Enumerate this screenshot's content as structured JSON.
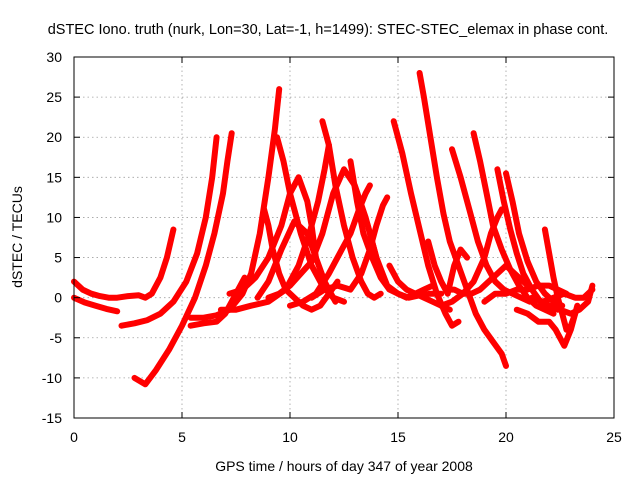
{
  "chart_data": {
    "type": "line",
    "title": "dSTEC Iono. truth (nurk, Lon=30, Lat=-1, h=1499): STEC-STEC_elemax in phase cont.",
    "xlabel": "GPS time / hours of day 347 of year 2008",
    "ylabel": "dSTEC  / TECUs",
    "xlim": [
      0,
      25
    ],
    "ylim": [
      -15,
      30
    ],
    "xticks": [
      0,
      5,
      10,
      15,
      20,
      25
    ],
    "yticks": [
      -15,
      -10,
      -5,
      0,
      5,
      10,
      15,
      20,
      25,
      30
    ],
    "grid": true,
    "line_color": "#ff0000",
    "marker": "plus",
    "series": [
      {
        "x": [
          0.0,
          0.4,
          0.8,
          1.2,
          1.6,
          2.0,
          2.5,
          3.0,
          3.3,
          3.6,
          4.0,
          4.3,
          4.6
        ],
        "y": [
          2.0,
          1.0,
          0.5,
          0.2,
          0.0,
          0.0,
          0.2,
          0.3,
          0.0,
          0.5,
          2.5,
          5.0,
          8.5
        ]
      },
      {
        "x": [
          0.0,
          0.5,
          1.0,
          1.5,
          2.0
        ],
        "y": [
          0.0,
          -0.6,
          -1.0,
          -1.4,
          -1.7
        ]
      },
      {
        "x": [
          2.2,
          2.8,
          3.4,
          4.0,
          4.6,
          5.2,
          5.7,
          6.1,
          6.4,
          6.6
        ],
        "y": [
          -3.5,
          -3.2,
          -2.8,
          -2.0,
          -0.5,
          2.0,
          5.5,
          10.0,
          15.0,
          20.0
        ]
      },
      {
        "x": [
          2.8,
          3.3,
          3.8,
          4.4,
          5.0,
          5.6,
          6.1,
          6.5,
          6.9,
          7.1,
          7.3
        ],
        "y": [
          -10.0,
          -10.8,
          -9.0,
          -6.5,
          -3.5,
          0.0,
          4.0,
          8.0,
          13.0,
          17.0,
          20.5
        ]
      },
      {
        "x": [
          5.4,
          6.0,
          6.6,
          7.0,
          7.3,
          7.6,
          7.9
        ],
        "y": [
          -3.5,
          -3.2,
          -3.0,
          -2.0,
          -0.5,
          1.0,
          2.5
        ]
      },
      {
        "x": [
          5.4,
          6.0,
          6.6,
          7.2,
          7.8,
          8.2,
          8.6,
          9.0,
          9.3,
          9.5
        ],
        "y": [
          -2.5,
          -2.5,
          -2.2,
          -1.5,
          0.5,
          3.0,
          8.0,
          15.0,
          21.0,
          26.0
        ]
      },
      {
        "x": [
          7.2,
          7.8,
          8.4,
          9.0,
          9.6,
          10.0,
          10.4,
          10.8,
          11.0,
          11.2
        ],
        "y": [
          0.5,
          1.0,
          2.5,
          5.0,
          9.0,
          13.0,
          15.0,
          12.0,
          9.0,
          5.0
        ]
      },
      {
        "x": [
          8.8,
          9.0,
          9.2,
          9.5,
          9.8,
          10.2,
          10.6,
          11.0,
          11.4,
          11.8,
          12.2
        ],
        "y": [
          11.0,
          9.0,
          6.0,
          3.0,
          1.0,
          0.0,
          -1.0,
          -1.5,
          -1.0,
          0.5,
          2.0
        ]
      },
      {
        "x": [
          9.4,
          9.7,
          10.0,
          10.5,
          11.0,
          11.5,
          12.0,
          12.5
        ],
        "y": [
          20.0,
          17.0,
          13.0,
          8.0,
          4.0,
          1.5,
          0.0,
          -0.5
        ]
      },
      {
        "x": [
          6.8,
          7.5,
          8.2,
          9.0,
          9.8,
          10.4,
          10.9,
          11.3,
          11.6,
          11.8
        ],
        "y": [
          -1.5,
          -1.5,
          -1.0,
          -0.5,
          1.0,
          4.0,
          8.0,
          12.0,
          16.0,
          19.0
        ]
      },
      {
        "x": [
          8.5,
          9.0,
          9.6,
          10.2,
          10.8,
          11.2,
          11.6,
          11.9,
          12.1
        ],
        "y": [
          0.0,
          2.0,
          6.0,
          9.5,
          8.0,
          5.0,
          2.0,
          0.5,
          -0.5
        ]
      },
      {
        "x": [
          9.0,
          9.5,
          10.0,
          10.5,
          11.0,
          11.5,
          12.0,
          12.5,
          13.0,
          13.5,
          14.0
        ],
        "y": [
          0.0,
          0.5,
          1.5,
          3.0,
          4.5,
          8.0,
          13.0,
          16.0,
          14.0,
          10.0,
          5.0
        ]
      },
      {
        "x": [
          11.5,
          11.8,
          12.1,
          12.5,
          12.9,
          13.3,
          13.6,
          13.9,
          14.2
        ],
        "y": [
          22.0,
          19.0,
          14.0,
          9.0,
          5.0,
          2.0,
          0.5,
          0.0,
          0.5
        ]
      },
      {
        "x": [
          10.0,
          10.6,
          11.2,
          11.8,
          12.4,
          12.8,
          13.2,
          13.5,
          13.7
        ],
        "y": [
          -1.0,
          -0.5,
          0.5,
          3.0,
          6.0,
          8.0,
          11.0,
          13.0,
          14.0
        ]
      },
      {
        "x": [
          12.8,
          13.1,
          13.4,
          13.8,
          14.2,
          14.6,
          15.0,
          15.4,
          15.8,
          16.2,
          16.6
        ],
        "y": [
          17.0,
          12.0,
          8.0,
          5.0,
          2.5,
          1.0,
          0.5,
          0.0,
          0.5,
          1.0,
          1.5
        ]
      },
      {
        "x": [
          11.0,
          11.6,
          12.2,
          12.8,
          13.3,
          13.7,
          14.0,
          14.3,
          14.5
        ],
        "y": [
          0.0,
          1.0,
          1.5,
          1.0,
          3.0,
          6.0,
          9.0,
          11.5,
          12.5
        ]
      },
      {
        "x": [
          13.2,
          13.6,
          14.0,
          14.5,
          15.0,
          15.5,
          16.0,
          16.5,
          17.0
        ],
        "y": [
          12.0,
          9.0,
          5.0,
          1.5,
          0.5,
          0.0,
          0.3,
          0.5,
          0.5
        ]
      },
      {
        "x": [
          14.6,
          15.0,
          15.4,
          15.8,
          16.2,
          16.6,
          17.0,
          17.4
        ],
        "y": [
          4.0,
          2.0,
          1.0,
          0.5,
          0.0,
          -0.5,
          -1.0,
          -1.5
        ]
      },
      {
        "x": [
          14.8,
          15.2,
          15.6,
          16.0,
          16.4,
          16.8,
          17.2,
          17.5,
          17.8
        ],
        "y": [
          22.0,
          18.0,
          13.0,
          8.5,
          4.0,
          0.5,
          -2.0,
          -3.5,
          -3.0
        ]
      },
      {
        "x": [
          16.0,
          16.2,
          16.5,
          16.8,
          17.1,
          17.4,
          17.8,
          18.2,
          18.6,
          19.0,
          19.4,
          19.8,
          20.0
        ],
        "y": [
          28.0,
          25.0,
          20.0,
          15.0,
          10.5,
          7.0,
          4.0,
          1.0,
          -2.0,
          -4.0,
          -5.5,
          -7.0,
          -8.5
        ]
      },
      {
        "x": [
          16.4,
          16.7,
          17.0,
          17.3,
          17.6,
          17.9,
          18.2
        ],
        "y": [
          7.0,
          4.0,
          2.0,
          0.5,
          4.0,
          6.0,
          5.0
        ]
      },
      {
        "x": [
          17.2,
          17.6,
          18.0,
          18.4,
          18.8,
          19.2,
          19.6,
          20.0,
          20.4,
          20.8,
          21.2
        ],
        "y": [
          1.0,
          1.0,
          0.5,
          0.5,
          1.0,
          2.0,
          3.0,
          4.0,
          3.0,
          2.0,
          1.0
        ]
      },
      {
        "x": [
          17.5,
          17.9,
          18.3,
          18.7,
          19.1,
          19.5,
          19.9,
          20.3,
          20.7,
          21.1
        ],
        "y": [
          18.5,
          15.0,
          11.0,
          7.0,
          4.0,
          2.0,
          1.0,
          0.5,
          0.0,
          -0.5
        ]
      },
      {
        "x": [
          18.5,
          18.8,
          19.1,
          19.4,
          19.8,
          20.2,
          20.6,
          21.0,
          21.4,
          21.8,
          22.2
        ],
        "y": [
          20.5,
          17.0,
          13.0,
          9.0,
          6.0,
          3.5,
          1.5,
          0.0,
          -1.0,
          -1.5,
          -2.0
        ]
      },
      {
        "x": [
          17.0,
          17.5,
          18.0,
          18.5,
          19.0,
          19.3,
          19.6,
          19.8
        ],
        "y": [
          -1.0,
          -0.5,
          0.5,
          2.0,
          5.0,
          8.0,
          10.0,
          11.0
        ]
      },
      {
        "x": [
          19.6,
          19.9,
          20.2,
          20.5,
          20.8,
          21.2,
          21.6,
          22.0,
          22.4
        ],
        "y": [
          16.0,
          12.0,
          8.5,
          5.5,
          3.0,
          1.0,
          -0.5,
          -1.0,
          -1.5
        ]
      },
      {
        "x": [
          20.0,
          20.3,
          20.6,
          21.0,
          21.4,
          21.8,
          22.2,
          22.6
        ],
        "y": [
          15.5,
          12.0,
          8.0,
          4.5,
          2.0,
          0.5,
          -0.5,
          -1.0
        ]
      },
      {
        "x": [
          19.0,
          19.5,
          20.0,
          20.5,
          21.0,
          21.5,
          22.0,
          22.4,
          22.8
        ],
        "y": [
          -0.5,
          0.5,
          0.5,
          1.0,
          1.0,
          1.5,
          1.5,
          1.0,
          0.5
        ]
      },
      {
        "x": [
          21.8,
          22.0,
          22.2,
          22.4,
          22.6,
          22.8,
          23.0,
          23.2
        ],
        "y": [
          8.5,
          5.5,
          2.5,
          0.0,
          -2.0,
          -4.0,
          -3.5,
          -2.0
        ]
      },
      {
        "x": [
          20.5,
          21.0,
          21.5,
          22.0,
          22.3,
          22.5,
          22.7,
          23.0,
          23.3
        ],
        "y": [
          -1.5,
          -2.0,
          -3.0,
          -3.0,
          -4.0,
          -5.0,
          -6.0,
          -4.0,
          -1.0
        ]
      },
      {
        "x": [
          21.2,
          21.7,
          22.2,
          22.7,
          23.2,
          23.6,
          24.0
        ],
        "y": [
          0.0,
          -0.5,
          0.0,
          0.5,
          0.0,
          0.0,
          1.0
        ]
      },
      {
        "x": [
          22.0,
          22.5,
          23.0,
          23.4,
          23.8,
          24.0
        ],
        "y": [
          -1.0,
          -1.5,
          -2.0,
          -1.5,
          -0.5,
          1.5
        ]
      }
    ]
  }
}
